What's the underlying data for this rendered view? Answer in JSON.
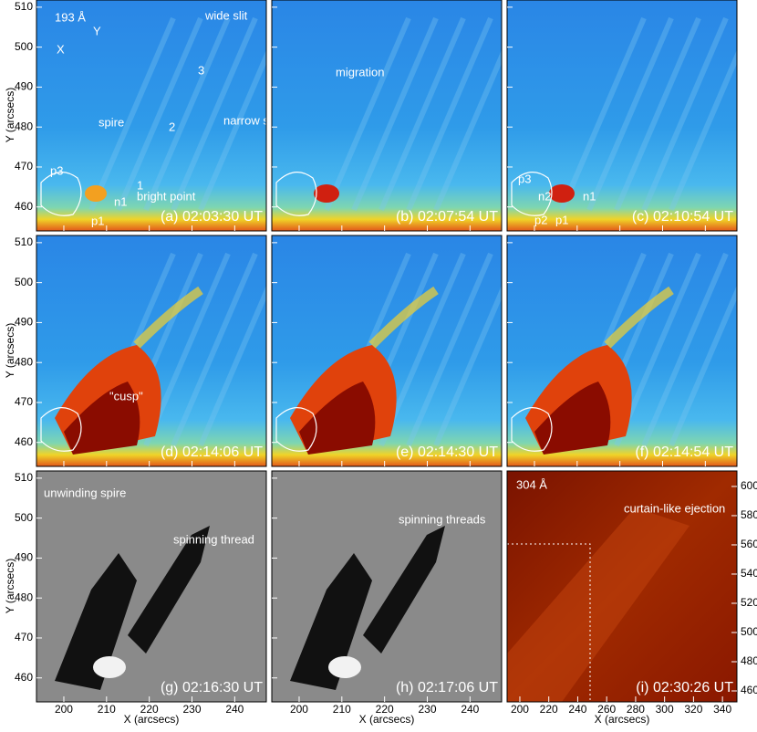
{
  "figure": {
    "y_label": "Y (arcsecs)",
    "x_label": "X (arcsecs)",
    "axes": {
      "xlim": [
        193.6,
        247.4
      ],
      "xticks": [
        200,
        210,
        220,
        230,
        240
      ],
      "ylim": [
        454,
        511.8
      ],
      "yticks": [
        460,
        470,
        480,
        490,
        500,
        510
      ]
    },
    "panel_i_axes": {
      "xlim": [
        191.2,
        350
      ],
      "xticks": [
        200,
        220,
        240,
        260,
        280,
        300,
        320,
        340
      ],
      "ylim": [
        452.5,
        610.6
      ],
      "yticks": [
        460,
        480,
        500,
        520,
        540,
        560,
        580,
        600
      ]
    },
    "panels": [
      {
        "label": "(a) 02:03:30 UT",
        "annotations": [
          "193 Å",
          "wide slit",
          "X",
          "Y",
          "3",
          "narrow slits",
          "spire",
          "2",
          "1",
          "bright point",
          "p3",
          "n1",
          "p1"
        ]
      },
      {
        "label": "(b) 02:07:54 UT",
        "annotations": [
          "migration"
        ]
      },
      {
        "label": "(c) 02:10:54 UT",
        "annotations": [
          "p3",
          "n2",
          "n1",
          "p2",
          "p1"
        ]
      },
      {
        "label": "(d) 02:14:06 UT",
        "annotations": [
          "\"cusp\""
        ]
      },
      {
        "label": "(e) 02:14:30 UT",
        "annotations": []
      },
      {
        "label": "(f) 02:14:54 UT",
        "annotations": []
      },
      {
        "label": "(g) 02:16:30 UT",
        "annotations": [
          "unwinding spire",
          "spinning thread"
        ]
      },
      {
        "label": "(h) 02:17:06 UT",
        "annotations": [
          "spinning threads"
        ]
      },
      {
        "label": "(i) 02:30:26 UT",
        "annotations": [
          "304 Å",
          "curtain-like ejection"
        ]
      }
    ]
  }
}
